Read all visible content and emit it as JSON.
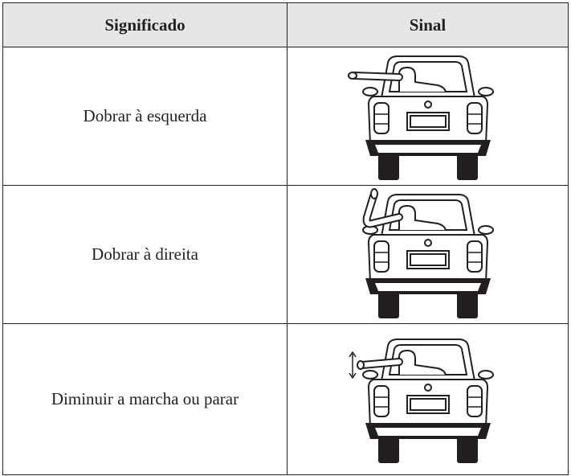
{
  "table": {
    "headers": [
      "Significado",
      "Sinal"
    ],
    "rows": [
      [
        "Dobrar à esquerda"
      ],
      [
        "Dobrar à direita"
      ],
      [
        "Diminuir a marcha ou parar"
      ]
    ]
  }
}
